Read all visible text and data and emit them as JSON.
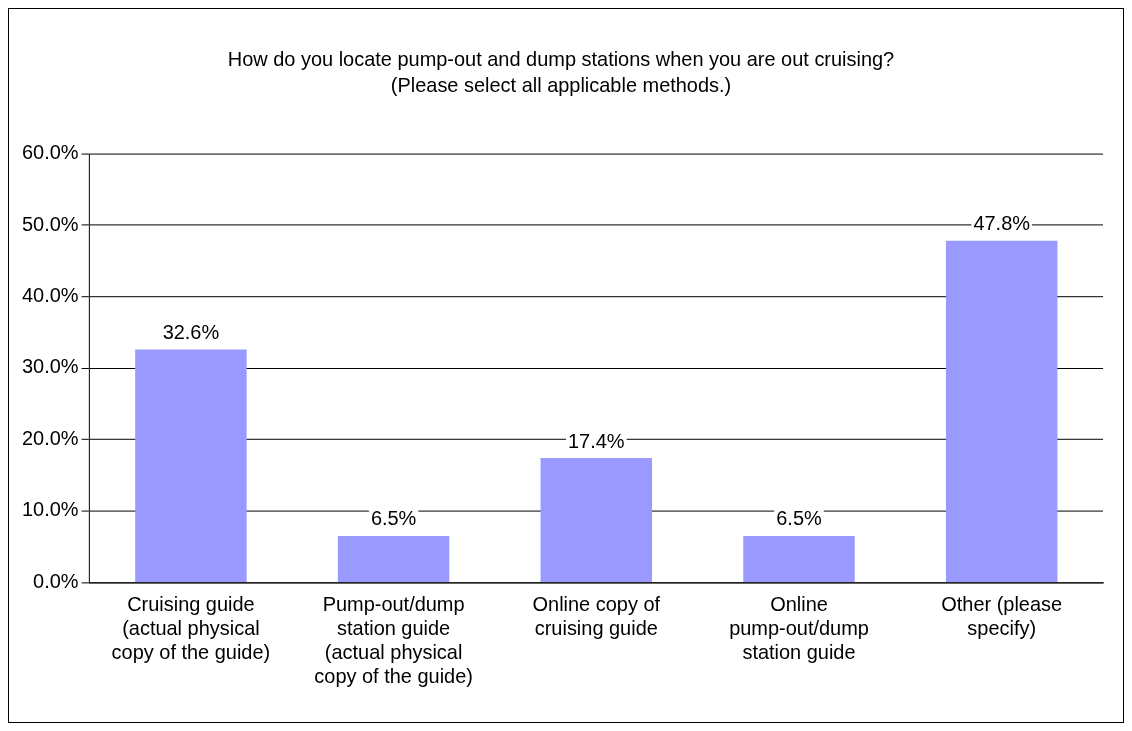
{
  "chart_data": {
    "type": "bar",
    "title": "How do you locate pump-out and dump stations when you are out cruising?",
    "subtitle": "(Please select all applicable methods.)",
    "categories": [
      "Cruising guide (actual physical copy of the guide)",
      "Pump-out/dump station guide (actual physical copy of the guide)",
      "Online copy of cruising guide",
      "Online pump-out/dump station guide",
      "Other (please specify)"
    ],
    "values": [
      32.6,
      6.5,
      17.4,
      6.5,
      47.8
    ],
    "value_labels": [
      "32.6%",
      "6.5%",
      "17.4%",
      "6.5%",
      "47.8%"
    ],
    "color": "#9999ff",
    "ylim": [
      0,
      60
    ],
    "yticks": [
      {
        "value": 0,
        "label": "0.0%"
      },
      {
        "value": 10,
        "label": "10.0%"
      },
      {
        "value": 20,
        "label": "20.0%"
      },
      {
        "value": 30,
        "label": "30.0%"
      },
      {
        "value": 40,
        "label": "40.0%"
      },
      {
        "value": 50,
        "label": "50.0%"
      },
      {
        "value": 60,
        "label": "60.0%"
      }
    ],
    "grid": "y",
    "legend": false
  }
}
